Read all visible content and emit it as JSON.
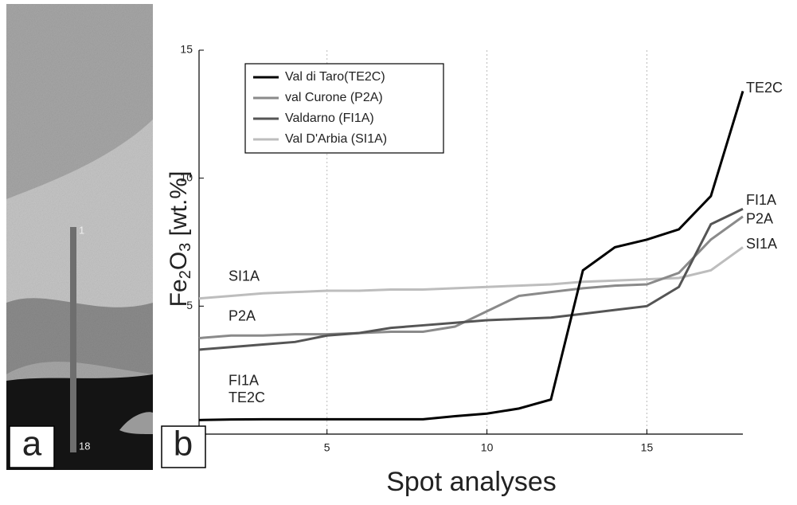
{
  "panel_a": {
    "label": "a",
    "scale_start": "1",
    "scale_end": "18"
  },
  "chart_data": {
    "type": "line",
    "panel_label": "b",
    "x_label": "Spot analyses",
    "y_label": {
      "base": "Fe",
      "sub1": "2",
      "mid": "O",
      "sub2": "3",
      "rest": " [wt.%]"
    },
    "x": [
      1,
      2,
      3,
      4,
      5,
      6,
      7,
      8,
      9,
      10,
      11,
      12,
      13,
      14,
      15,
      16,
      17,
      18
    ],
    "xlim": [
      1,
      18
    ],
    "xticks": [
      5,
      10,
      15
    ],
    "ylim": [
      0,
      15
    ],
    "yticks": [
      0,
      5,
      10,
      15
    ],
    "grid": true,
    "legend": "upper left",
    "series": [
      {
        "name": "Val di Taro(TE2C)",
        "label": "TE2C",
        "color": "#000000",
        "values": [
          0.55,
          0.57,
          0.58,
          0.58,
          0.58,
          0.58,
          0.58,
          0.58,
          0.7,
          0.8,
          1.0,
          1.35,
          6.4,
          7.3,
          7.6,
          8.0,
          9.3,
          13.4
        ]
      },
      {
        "name": "val Curone (P2A)",
        "label": "P2A",
        "color": "#8a8a8a",
        "values": [
          3.75,
          3.85,
          3.85,
          3.9,
          3.9,
          3.95,
          4.0,
          4.0,
          4.2,
          4.8,
          5.4,
          5.55,
          5.7,
          5.8,
          5.85,
          6.3,
          7.6,
          8.5
        ]
      },
      {
        "name": "Valdarno (FI1A)",
        "label": "FI1A",
        "color": "#555555",
        "values": [
          3.3,
          3.4,
          3.5,
          3.6,
          3.85,
          3.95,
          4.15,
          4.25,
          4.35,
          4.45,
          4.5,
          4.55,
          4.7,
          4.85,
          5.0,
          5.75,
          8.2,
          8.8
        ]
      },
      {
        "name": "Val D'Arbia (SI1A)",
        "label": "SI1A",
        "color": "#bdbdbd",
        "values": [
          5.3,
          5.4,
          5.5,
          5.55,
          5.6,
          5.6,
          5.65,
          5.65,
          5.7,
          5.75,
          5.8,
          5.85,
          5.95,
          6.0,
          6.05,
          6.1,
          6.4,
          7.3
        ]
      }
    ]
  }
}
